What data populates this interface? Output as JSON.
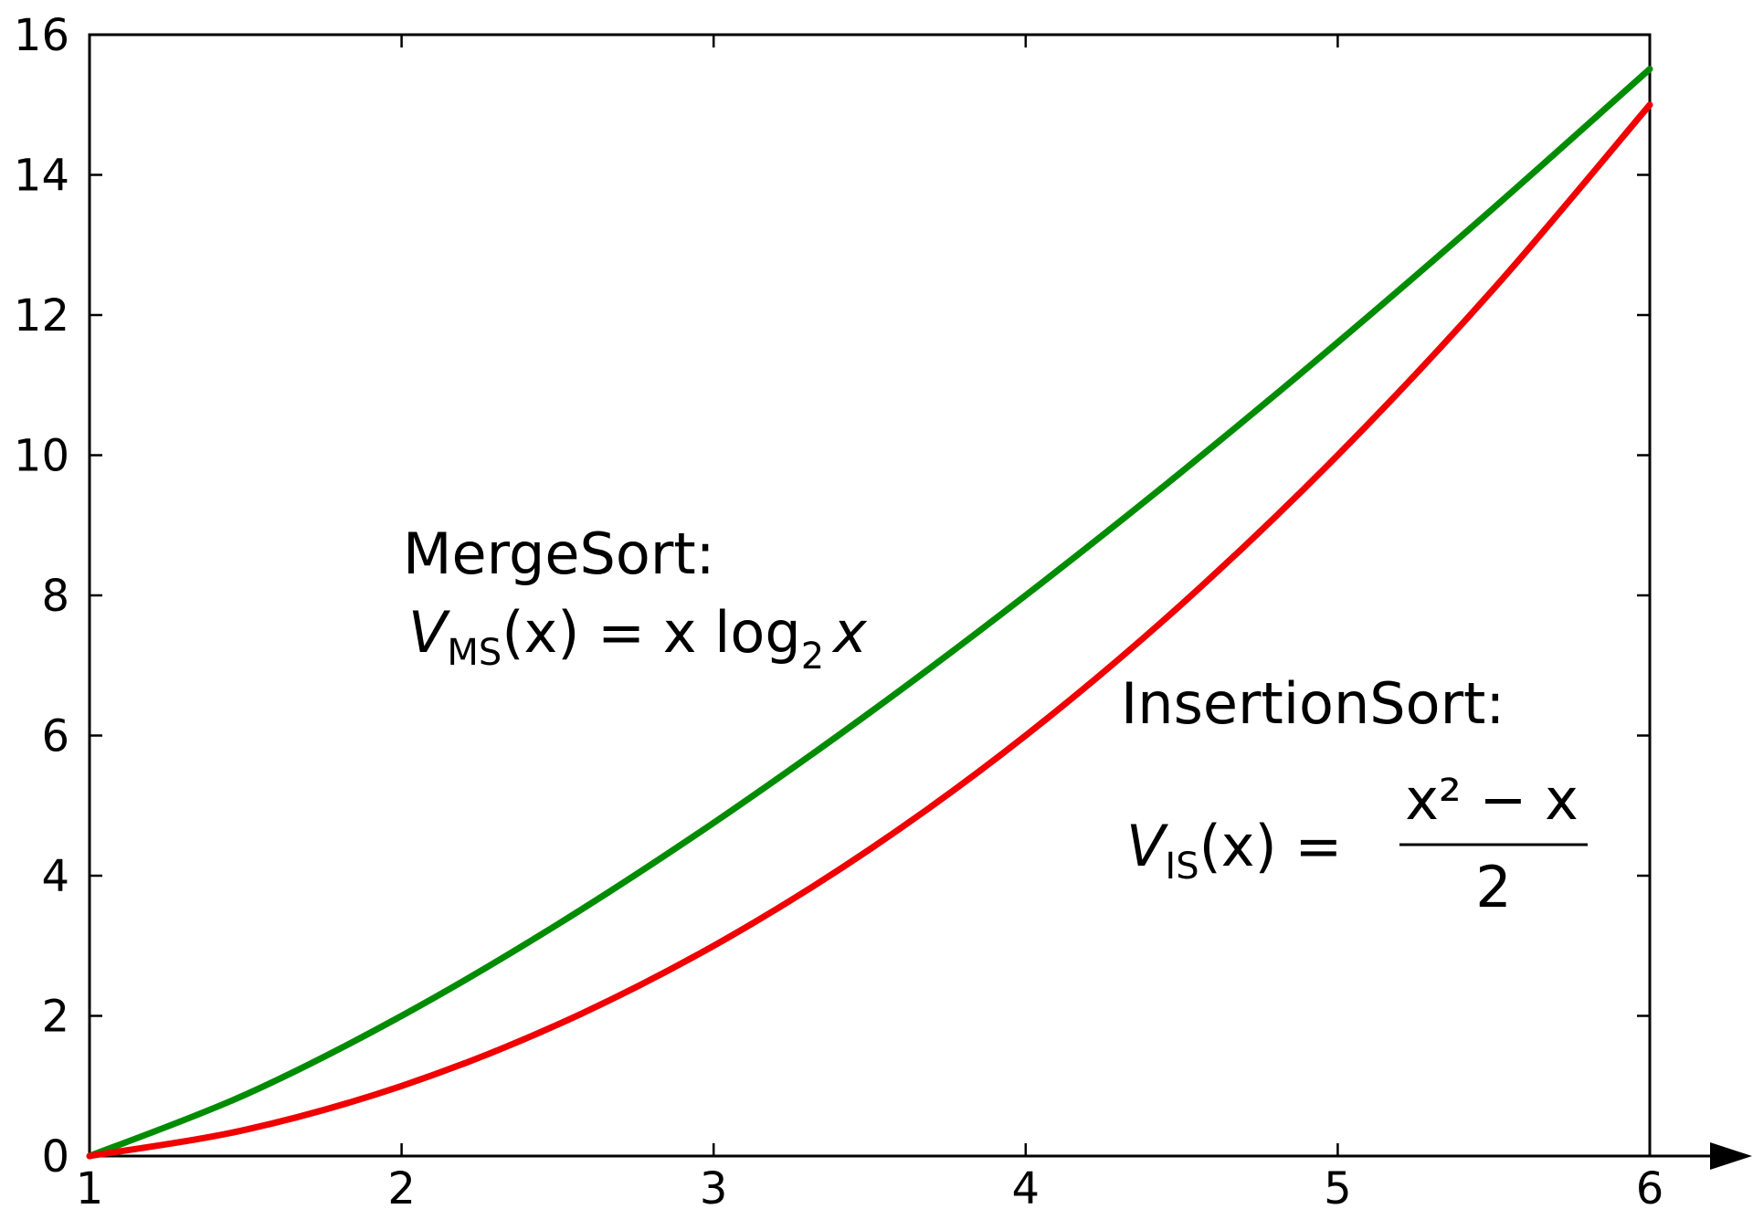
{
  "chart_data": {
    "type": "line",
    "title": "",
    "xlabel": "",
    "ylabel": "",
    "xlim": [
      1,
      6
    ],
    "ylim": [
      0,
      16
    ],
    "x_ticks": [
      "1",
      "2",
      "3",
      "4",
      "5",
      "6"
    ],
    "y_ticks": [
      "0",
      "2",
      "4",
      "6",
      "8",
      "10",
      "12",
      "14",
      "16"
    ],
    "x_axis_arrow": true,
    "grid": false,
    "x": [
      1,
      1.5,
      2,
      2.5,
      3,
      3.5,
      4,
      4.5,
      5,
      5.5,
      6
    ],
    "series": [
      {
        "color": "#008c00",
        "values": [
          0,
          0.877,
          2,
          3.305,
          4.755,
          6.326,
          8,
          9.764,
          11.61,
          13.53,
          15.51
        ]
      },
      {
        "color": "#f00000",
        "values": [
          0,
          0.375,
          1,
          1.875,
          3,
          4.375,
          6,
          7.875,
          10,
          12.375,
          15
        ]
      }
    ],
    "annotations": [
      {
        "heading": "MergeSort:",
        "formula": {
          "var": "V",
          "sub": "MS",
          "lhs_rest": "(x) = x log",
          "log_base": "2",
          "rhs_tail": "x"
        }
      },
      {
        "heading": "InsertionSort:",
        "formula": {
          "var": "V",
          "sub": "IS",
          "lhs_rest": "(x) =",
          "numerator": "x² − x",
          "denominator": "2"
        }
      }
    ]
  }
}
